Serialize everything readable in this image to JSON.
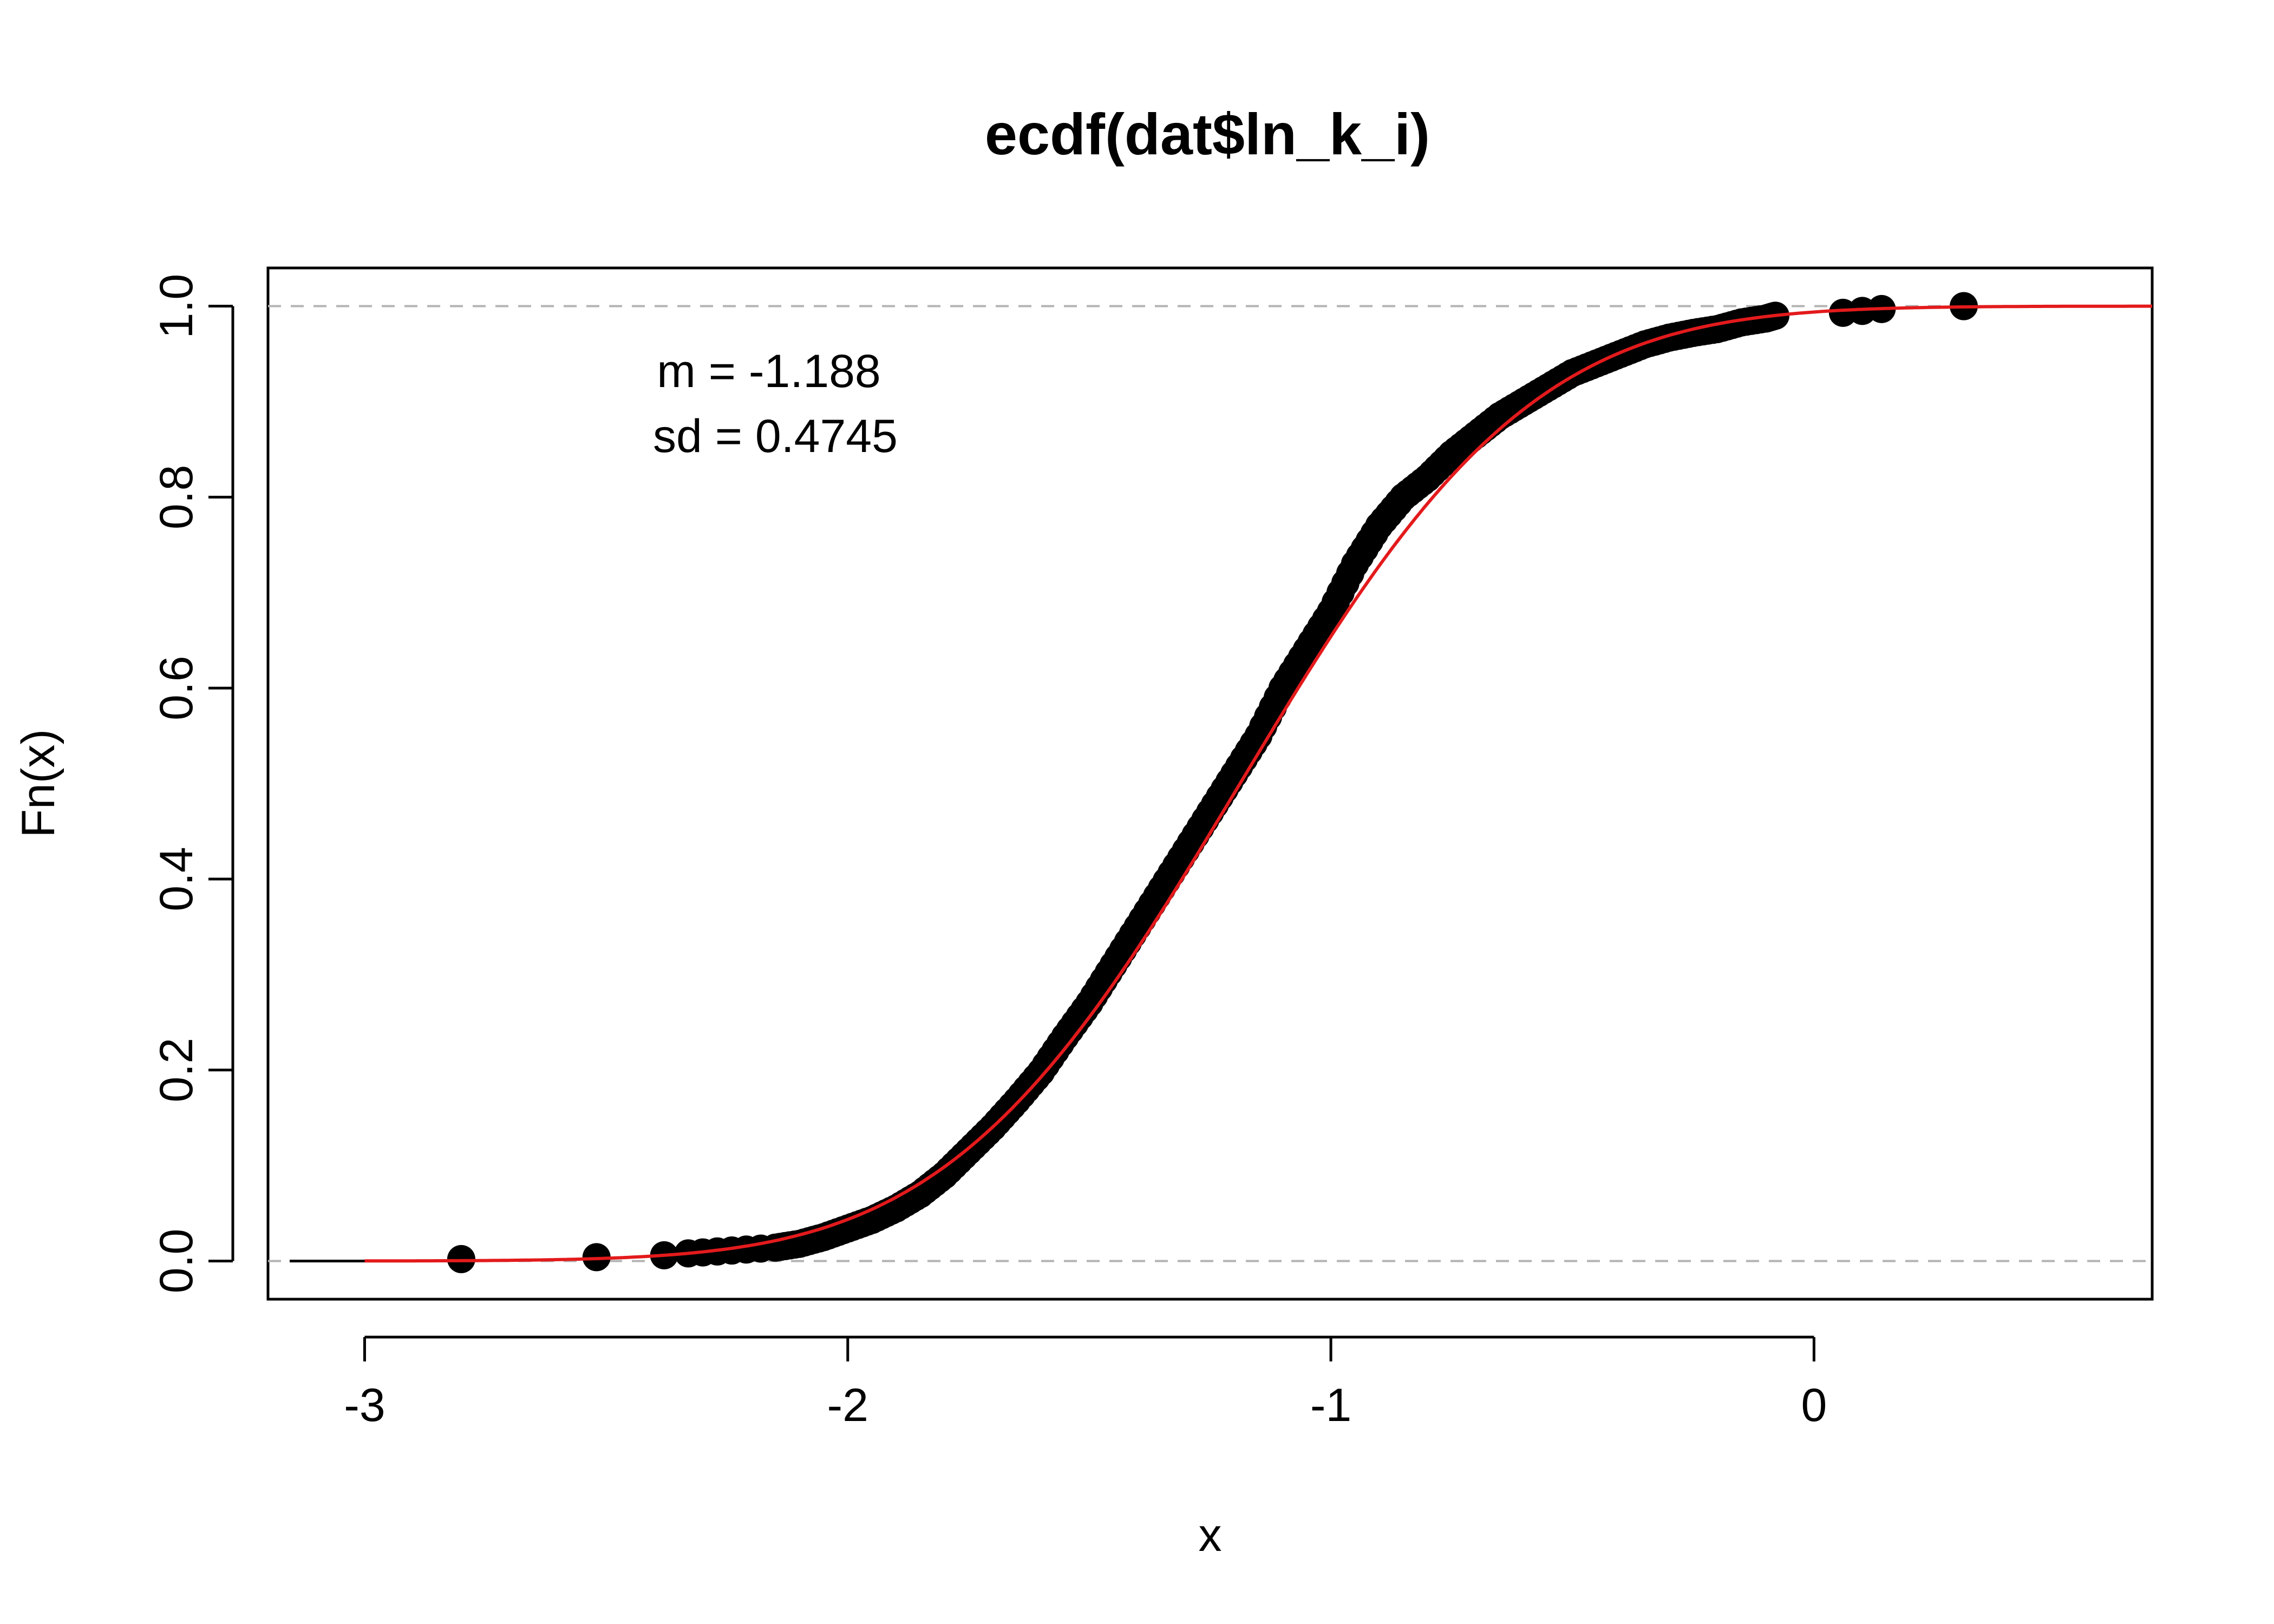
{
  "chart_data": {
    "type": "scatter",
    "title": "ecdf(dat$ln_k_i)",
    "xlabel": "x",
    "ylabel": "Fn(x)",
    "xlim": [
      -3.2,
      0.7
    ],
    "ylim": [
      -0.04,
      1.04
    ],
    "x_ticks": [
      -3,
      -2,
      -1,
      0
    ],
    "y_ticks": [
      0.0,
      0.2,
      0.4,
      0.6,
      0.8,
      1.0
    ],
    "x_tick_labels": [
      "-3",
      "-2",
      "-1",
      "0"
    ],
    "y_tick_labels": [
      "0.0",
      "0.2",
      "0.4",
      "0.6",
      "0.8",
      "1.0"
    ],
    "reference_lines": [
      0,
      1
    ],
    "grid": false,
    "annotations": [
      "m = -1.188",
      "sd = 0.4745"
    ],
    "series": [
      {
        "kind": "ecdf-points",
        "color": "#000000",
        "points": [
          [
            -2.8,
            0.002
          ],
          [
            -2.52,
            0.004
          ],
          [
            -2.38,
            0.006
          ],
          [
            -2.33,
            0.008
          ],
          [
            -2.3,
            0.009
          ],
          [
            -2.15,
            0.014
          ],
          [
            -2.1,
            0.018
          ],
          [
            -2.05,
            0.025
          ],
          [
            -2.0,
            0.034
          ],
          [
            -1.95,
            0.043
          ],
          [
            -1.9,
            0.055
          ],
          [
            -1.85,
            0.07
          ],
          [
            -1.8,
            0.09
          ],
          [
            -1.75,
            0.115
          ],
          [
            -1.7,
            0.14
          ],
          [
            -1.65,
            0.168
          ],
          [
            -1.6,
            0.198
          ],
          [
            -1.55,
            0.235
          ],
          [
            -1.5,
            0.27
          ],
          [
            -1.45,
            0.31
          ],
          [
            -1.4,
            0.35
          ],
          [
            -1.35,
            0.39
          ],
          [
            -1.3,
            0.43
          ],
          [
            -1.25,
            0.47
          ],
          [
            -1.2,
            0.51
          ],
          [
            -1.15,
            0.55
          ],
          [
            -1.1,
            0.6
          ],
          [
            -1.05,
            0.64
          ],
          [
            -1.0,
            0.68
          ],
          [
            -0.95,
            0.73
          ],
          [
            -0.9,
            0.77
          ],
          [
            -0.85,
            0.8
          ],
          [
            -0.8,
            0.82
          ],
          [
            -0.75,
            0.845
          ],
          [
            -0.7,
            0.865
          ],
          [
            -0.65,
            0.885
          ],
          [
            -0.6,
            0.9
          ],
          [
            -0.55,
            0.915
          ],
          [
            -0.5,
            0.93
          ],
          [
            -0.45,
            0.94
          ],
          [
            -0.4,
            0.95
          ],
          [
            -0.35,
            0.96
          ],
          [
            -0.3,
            0.967
          ],
          [
            -0.25,
            0.972
          ],
          [
            -0.2,
            0.976
          ],
          [
            -0.15,
            0.983
          ],
          [
            -0.1,
            0.987
          ],
          [
            -0.08,
            0.99
          ],
          [
            0.06,
            0.993
          ],
          [
            0.1,
            0.995
          ],
          [
            0.14,
            0.997
          ],
          [
            0.31,
            1.0
          ]
        ]
      },
      {
        "kind": "normal-cdf-line",
        "color": "#e31a1c",
        "mean": -1.188,
        "sd": 0.4745
      }
    ]
  }
}
